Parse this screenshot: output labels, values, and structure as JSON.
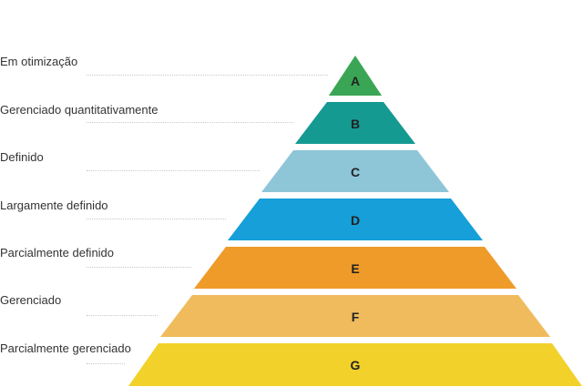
{
  "levels": [
    {
      "letter": "A",
      "name": "Em otimização",
      "color": "#3aa655"
    },
    {
      "letter": "B",
      "name": "Gerenciado quantitativamente",
      "color": "#159a92"
    },
    {
      "letter": "C",
      "name": "Definido",
      "color": "#8ec6d8"
    },
    {
      "letter": "D",
      "name": "Largamente definido",
      "color": "#169fd8"
    },
    {
      "letter": "E",
      "name": "Parcialmente definido",
      "color": "#ef9b2a"
    },
    {
      "letter": "F",
      "name": "Gerenciado",
      "color": "#efbb5c"
    },
    {
      "letter": "G",
      "name": "Parcialmente gerenciado",
      "color": "#f2d12a"
    }
  ]
}
